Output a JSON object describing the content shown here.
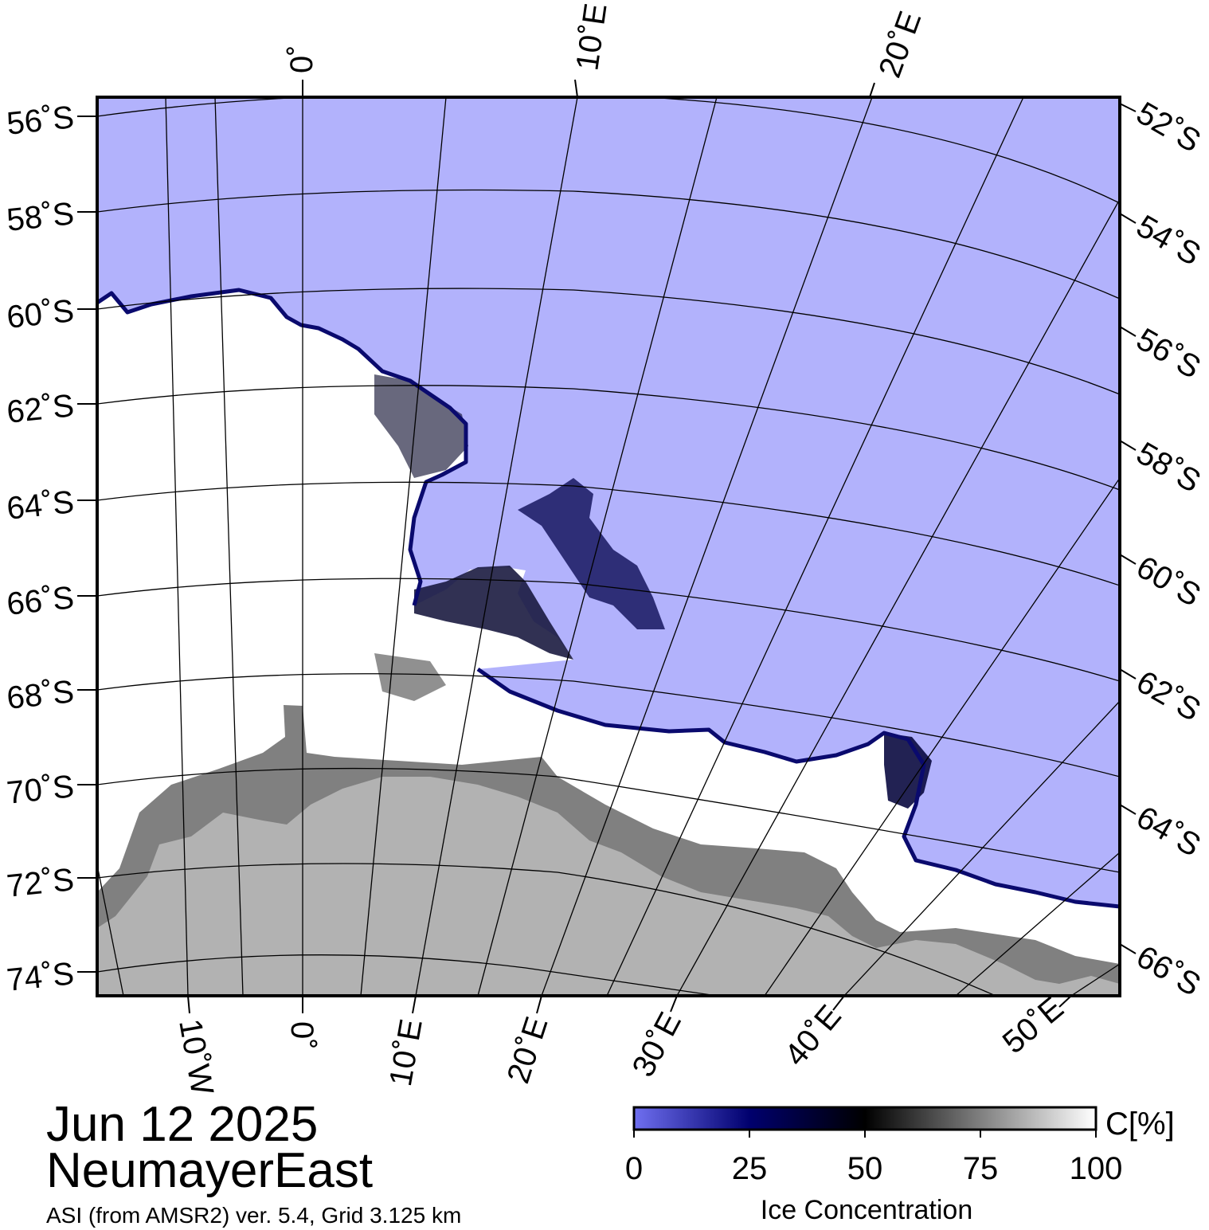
{
  "map": {
    "date": "Jun 12 2025",
    "region": "NeumayerEast",
    "product": "ASI (from AMSR2) ver. 5.4,  Grid 3.125 km",
    "colors": {
      "open_water": "#b2b2fc",
      "ice_shelf": "#808080",
      "land": "#b2b2b2",
      "sea_ice": "#ffffff",
      "ice_edge": "#0a0a6e"
    },
    "top_lon_labels": [
      "0˚",
      "10˚E",
      "20˚E"
    ],
    "bottom_lon_labels": [
      "10˚W",
      "0˚",
      "10˚E",
      "20˚E",
      "30˚E",
      "40˚E",
      "50˚E"
    ],
    "left_lat_labels": [
      "56˚S",
      "58˚S",
      "60˚S",
      "62˚S",
      "64˚S",
      "66˚S",
      "68˚S",
      "70˚S",
      "72˚S",
      "74˚S"
    ],
    "right_lat_labels": [
      "52˚S",
      "54˚S",
      "56˚S",
      "58˚S",
      "60˚S",
      "62˚S",
      "64˚S",
      "66˚S"
    ]
  },
  "colorbar": {
    "title": "Ice Concentration",
    "unit": "C[%]",
    "ticks": [
      "0",
      "25",
      "50",
      "75",
      "100"
    ],
    "stops": [
      {
        "value": 0,
        "color": "#6f6ff0"
      },
      {
        "value": 25,
        "color": "#00006e"
      },
      {
        "value": 50,
        "color": "#000000"
      },
      {
        "value": 100,
        "color": "#ffffff"
      }
    ]
  }
}
